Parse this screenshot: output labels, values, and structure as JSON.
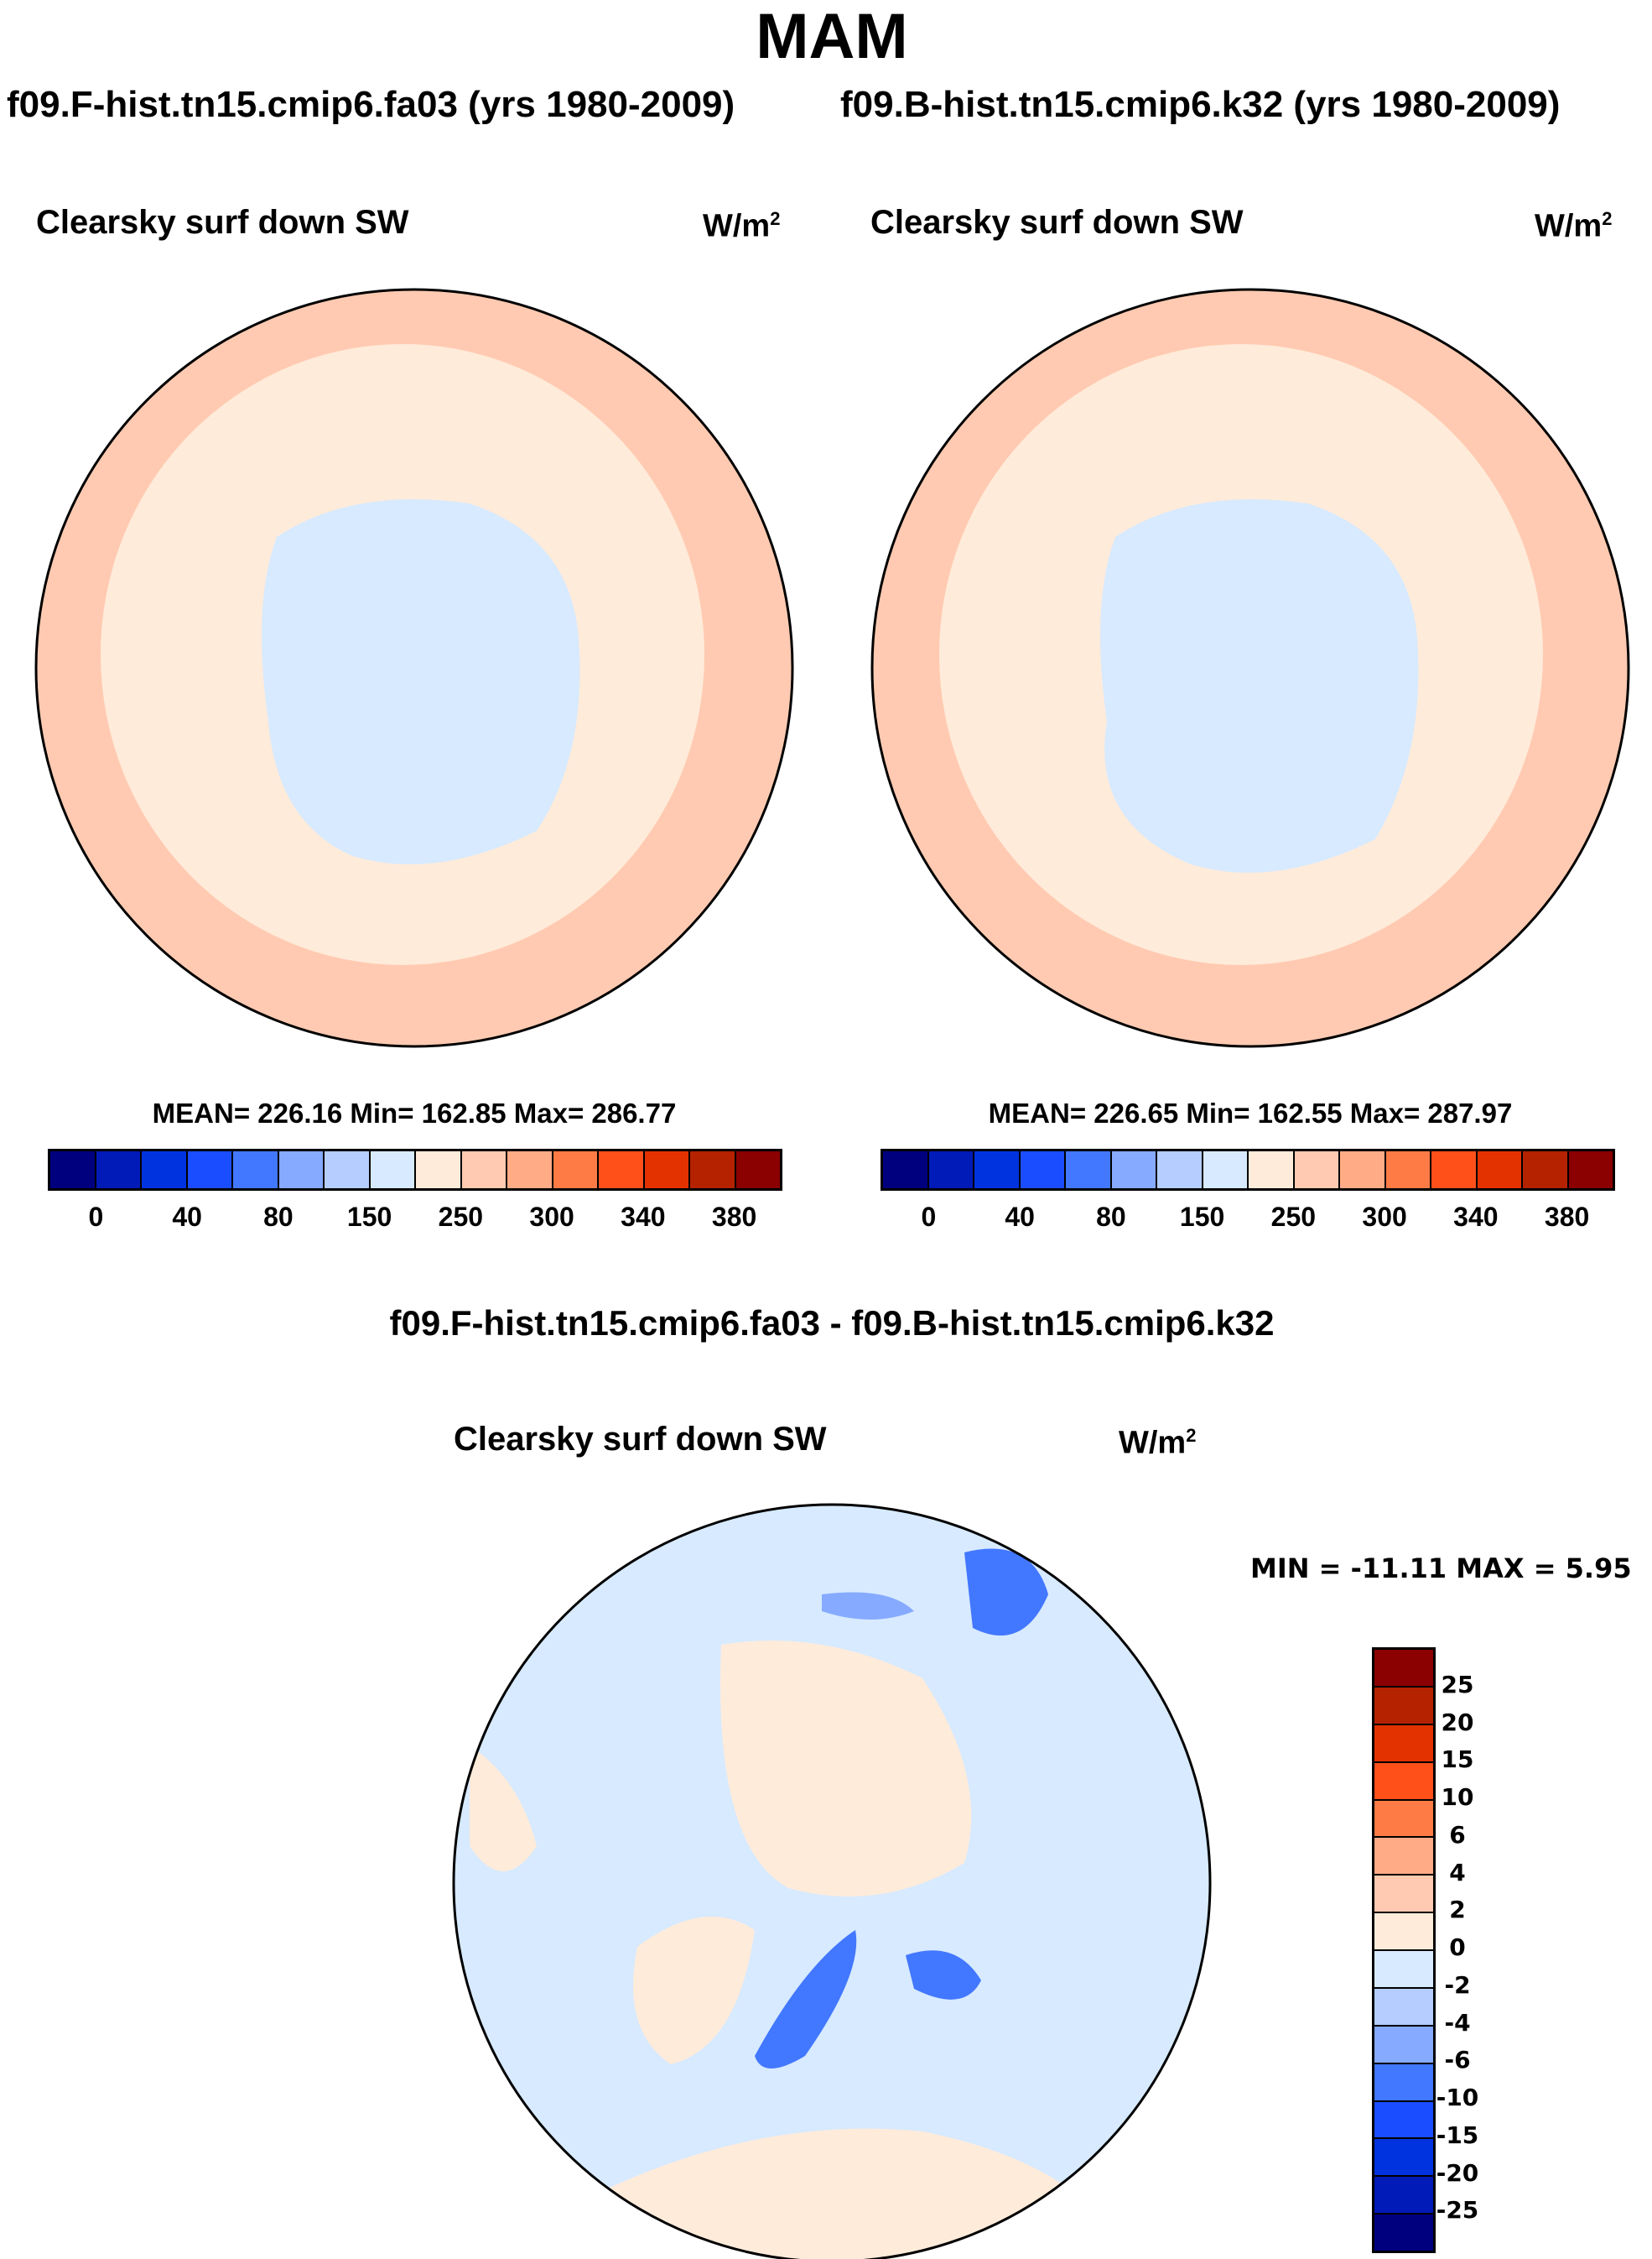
{
  "chart_data": [
    {
      "type": "heatmap",
      "projection": "north polar stereographic",
      "title": "MAM",
      "subtitle": "f09.F-hist.tn15.cmip6.fa03 (yrs 1980-2009)",
      "panel_title": "Clearsky surf down SW",
      "units": "W/m",
      "units_exp": "2",
      "stats": "MEAN= 226.16  Min= 162.85  Max= 286.77",
      "colorbar_labels": [
        "0",
        "40",
        "80",
        "150",
        "250",
        "300",
        "340",
        "380"
      ]
    },
    {
      "type": "heatmap",
      "projection": "north polar stereographic",
      "subtitle": "f09.B-hist.tn15.cmip6.k32 (yrs 1980-2009)",
      "panel_title": "Clearsky surf down SW",
      "units": "W/m",
      "units_exp": "2",
      "stats": "MEAN= 226.65  Min= 162.55  Max= 287.97",
      "colorbar_labels": [
        "0",
        "40",
        "80",
        "150",
        "250",
        "300",
        "340",
        "380"
      ]
    },
    {
      "type": "heatmap",
      "projection": "north polar stereographic",
      "subtitle": "f09.F-hist.tn15.cmip6.fa03 - f09.B-hist.tn15.cmip6.k32",
      "panel_title": "Clearsky surf down SW",
      "units": "W/m",
      "units_exp": "2",
      "stats": "MIN = -11.11 MAX =   5.95",
      "colorbar_labels": [
        "25",
        "20",
        "15",
        "10",
        "6",
        "4",
        "2",
        "0",
        "-2",
        "-4",
        "-6",
        "-10",
        "-15",
        "-20",
        "-25"
      ]
    }
  ],
  "colors": [
    "#00007f",
    "#001bb7",
    "#0033e0",
    "#1a4dff",
    "#4277ff",
    "#86aaff",
    "#b5cdff",
    "#d7eaff",
    "#ffebda",
    "#ffcab1",
    "#ffab86",
    "#ff7b45",
    "#ff501a",
    "#e33200",
    "#b42200",
    "#8b0000"
  ]
}
